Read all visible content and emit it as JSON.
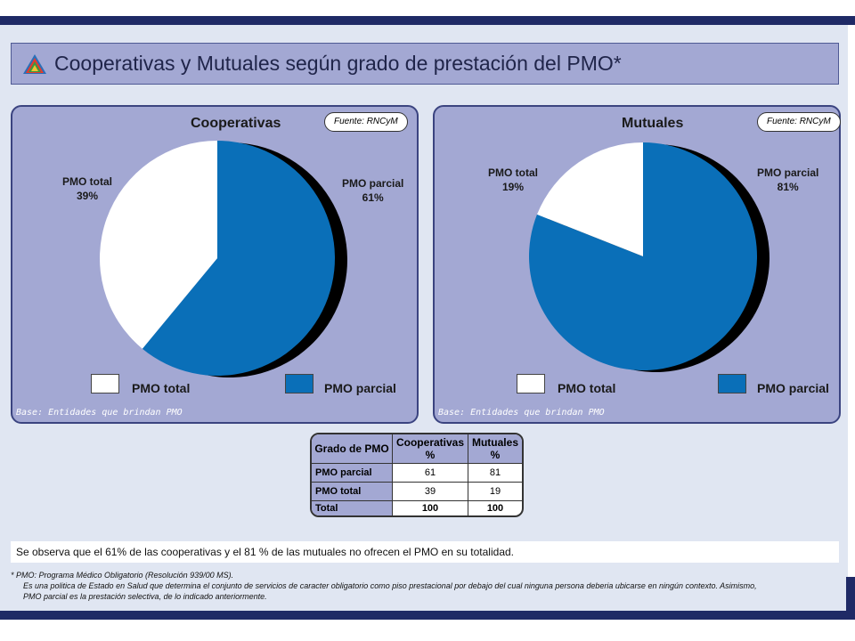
{
  "title": "Cooperativas y Mutuales según grado de prestación del PMO*",
  "chart_data": [
    {
      "type": "pie",
      "title": "Cooperativas",
      "source": "Fuente: RNCyM",
      "categories": [
        "PMO parcial",
        "PMO total"
      ],
      "values": [
        61,
        39
      ],
      "labels": [
        [
          "PMO parcial",
          "61%"
        ],
        [
          "PMO total",
          "39%"
        ]
      ],
      "colors": [
        "#0a6fb8",
        "#ffffff"
      ],
      "legend": [
        "PMO total",
        "PMO parcial"
      ],
      "legend_position": "bottom",
      "base_note": "Base: Entidades que brindan PMO"
    },
    {
      "type": "pie",
      "title": "Mutuales",
      "source": "Fuente: RNCyM",
      "categories": [
        "PMO parcial",
        "PMO total"
      ],
      "values": [
        81,
        19
      ],
      "labels": [
        [
          "PMO parcial",
          "81%"
        ],
        [
          "PMO total",
          "19%"
        ]
      ],
      "colors": [
        "#0a6fb8",
        "#ffffff"
      ],
      "legend": [
        "PMO total",
        "PMO parcial"
      ],
      "legend_position": "bottom",
      "base_note": "Base: Entidades que brindan PMO"
    }
  ],
  "table": {
    "headers": [
      "Grado de PMO",
      "Cooperativas %",
      "Mutuales %"
    ],
    "rows": [
      [
        "PMO parcial",
        "61",
        "81"
      ],
      [
        "PMO total",
        "39",
        "19"
      ],
      [
        "Total",
        "100",
        "100"
      ]
    ]
  },
  "conclusion": "Se observa que el 61% de las cooperativas y el  81 % de las mutuales no ofrecen el PMO en su totalidad.",
  "footnote": {
    "line1": "*   PMO: Programa Médico Obligatorio (Resolución 939/00 MS).",
    "line2": "Es una politica de Estado en Salud que determina el conjunto de servicios de caracter obligatorio como piso prestacional por debajo del cual ninguna persona deberia ubicarse en ningún  contexto. Asimismo,",
    "line3": "PMO parcial es la prestación selectiva, de lo indicado anteriormente."
  },
  "colors": {
    "navy": "#1f2a66",
    "panel": "#a3a8d3",
    "pie_blue": "#0a6fb8",
    "pie_white": "#ffffff",
    "shadow": "#000000"
  }
}
